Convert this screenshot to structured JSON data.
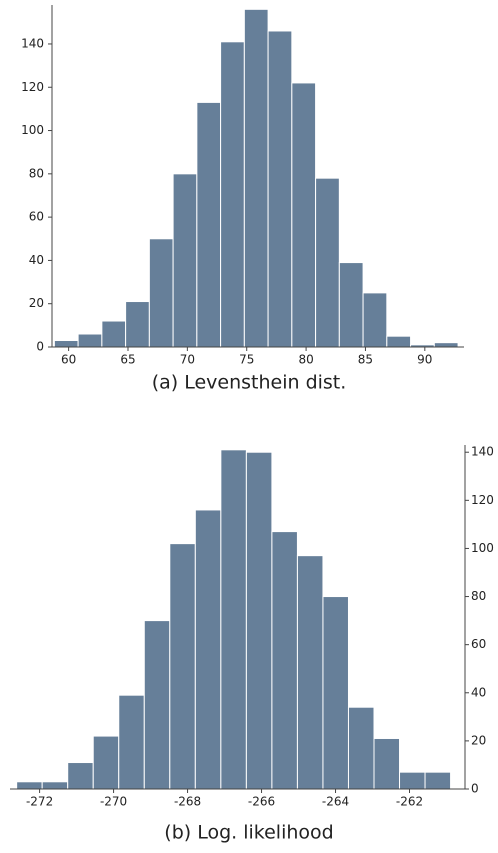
{
  "chart_data": [
    {
      "type": "histogram",
      "caption": "(a) Levensthein dist.",
      "color": "#667f99",
      "yaxis_side": "left",
      "bins": [
        58.8,
        60.8,
        62.8,
        64.8,
        66.8,
        68.8,
        70.8,
        72.8,
        74.8,
        76.8,
        78.8,
        80.8,
        82.8,
        84.8,
        86.8,
        88.8,
        90.8,
        92.8
      ],
      "values": [
        3,
        6,
        12,
        21,
        50,
        80,
        113,
        141,
        156,
        146,
        122,
        78,
        39,
        25,
        5,
        1,
        2
      ],
      "xlim": [
        58.6,
        93.3
      ],
      "ylim": [
        0,
        158
      ],
      "xticks": [
        60,
        65,
        70,
        75,
        80,
        85,
        90
      ],
      "yticks": [
        0,
        20,
        40,
        60,
        80,
        100,
        120,
        140
      ]
    },
    {
      "type": "histogram",
      "caption": "(b) Log. likelihood",
      "color": "#667f99",
      "yaxis_side": "right",
      "bins": [
        -272.62,
        -271.93,
        -271.24,
        -270.55,
        -269.86,
        -269.17,
        -268.48,
        -267.79,
        -267.1,
        -266.41,
        -265.72,
        -265.03,
        -264.34,
        -263.65,
        -262.96,
        -262.27,
        -261.58,
        -260.89
      ],
      "values": [
        3,
        3,
        11,
        22,
        39,
        70,
        102,
        116,
        141,
        140,
        107,
        97,
        80,
        34,
        21,
        7,
        7
      ],
      "xlim": [
        -272.8,
        -260.5
      ],
      "ylim": [
        0,
        143
      ],
      "xticks": [
        -272,
        -270,
        -268,
        -266,
        -264,
        -262
      ],
      "yticks": [
        0,
        20,
        40,
        60,
        80,
        100,
        120,
        140
      ]
    }
  ]
}
